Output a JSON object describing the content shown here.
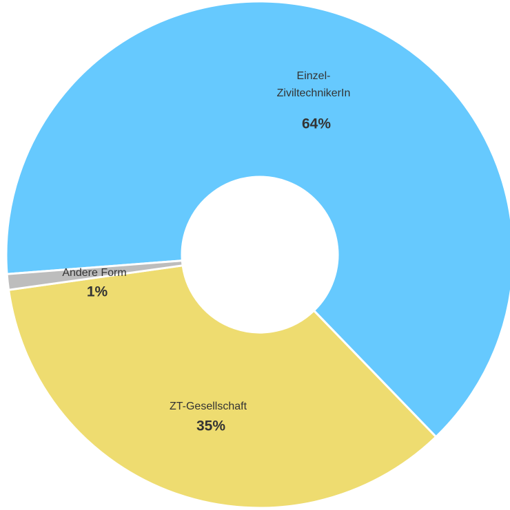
{
  "chart_data": {
    "type": "donut",
    "categories": [
      "Einzel-\nZiviltechnikerIn",
      "ZT-Gesellschaft",
      "Andere Form"
    ],
    "values": [
      64,
      35,
      1
    ],
    "value_labels": [
      "64%",
      "35%",
      "1%"
    ],
    "colors": [
      "#66c9fe",
      "#eedc70",
      "#bdbdbd"
    ]
  }
}
